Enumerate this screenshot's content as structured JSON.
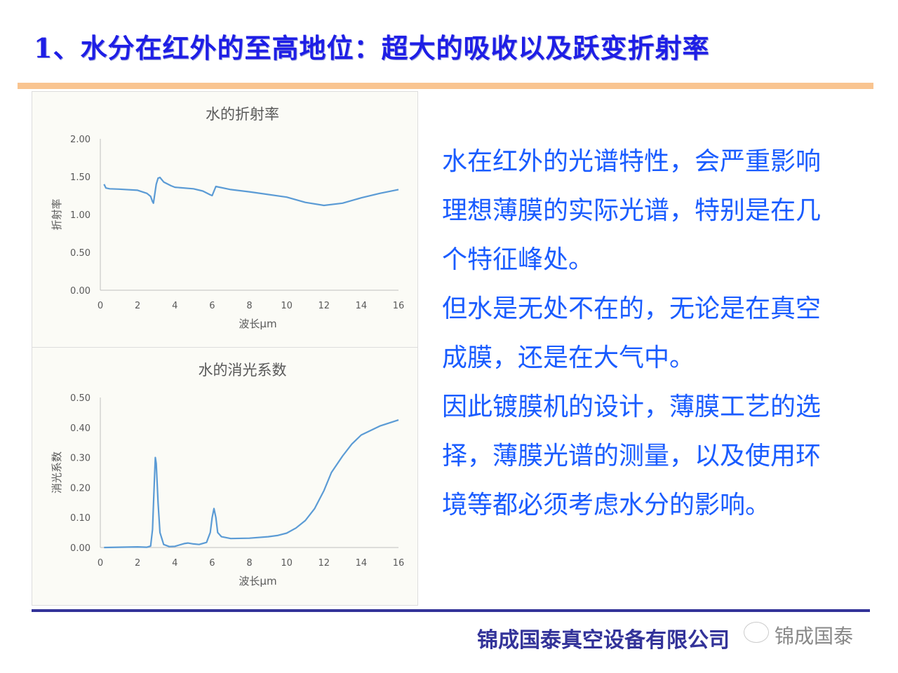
{
  "slide": {
    "title": "1、水分在红外的至高地位：超大的吸收以及跃变折射率",
    "body_lines": [
      "水在红外的光谱特性，会严重影响",
      "理想薄膜的实际光谱，特别是在几",
      "个特征峰处。",
      "但水是无处不在的，无论是在真空",
      "成膜，还是在大气中。",
      "因此镀膜机的设计，薄膜工艺的选",
      "择，薄膜光谱的测量，以及使用环",
      "境等都必须考虑水分的影响。"
    ],
    "footer": "锦成国泰真空设备有限公司",
    "watermark": "锦成国泰",
    "wechat_name": "锦成国泰",
    "colors": {
      "title": "#1e1ee6",
      "body": "#1a5cff",
      "accent_bar": "#f9c490",
      "footer": "#333399",
      "series": "#5b9bd5"
    }
  },
  "chart_data": [
    {
      "type": "line",
      "title": "水的折射率",
      "xlabel": "波长μm",
      "ylabel": "折射率",
      "xlim": [
        0,
        16
      ],
      "ylim": [
        0,
        2
      ],
      "xticks": [
        "0",
        "2",
        "4",
        "6",
        "8",
        "10",
        "12",
        "14",
        "16"
      ],
      "yticks": [
        "0.00",
        "0.50",
        "1.00",
        "1.50",
        "2.00"
      ],
      "grid": false,
      "x": [
        0.2,
        0.3,
        0.5,
        1,
        2,
        2.5,
        2.7,
        2.8,
        2.85,
        3.0,
        3.1,
        3.2,
        3.4,
        3.8,
        4.0,
        5,
        5.5,
        5.9,
        6.0,
        6.2,
        7,
        8,
        10,
        11,
        12,
        13,
        14,
        15,
        16
      ],
      "y": [
        1.4,
        1.35,
        1.34,
        1.335,
        1.32,
        1.28,
        1.24,
        1.17,
        1.15,
        1.4,
        1.48,
        1.49,
        1.43,
        1.38,
        1.36,
        1.34,
        1.31,
        1.26,
        1.25,
        1.37,
        1.33,
        1.3,
        1.23,
        1.16,
        1.12,
        1.15,
        1.22,
        1.28,
        1.33
      ]
    },
    {
      "type": "line",
      "title": "水的消光系数",
      "xlabel": "波长μm",
      "ylabel": "消光系数",
      "xlim": [
        0,
        16
      ],
      "ylim": [
        0,
        0.5
      ],
      "xticks": [
        "0",
        "2",
        "4",
        "6",
        "8",
        "10",
        "12",
        "14",
        "16"
      ],
      "yticks": [
        "0.00",
        "0.10",
        "0.20",
        "0.30",
        "0.40",
        "0.50"
      ],
      "grid": false,
      "x": [
        0.2,
        2,
        2.5,
        2.7,
        2.8,
        2.9,
        2.95,
        3.0,
        3.1,
        3.2,
        3.4,
        3.7,
        4,
        4.5,
        4.7,
        5,
        5.3,
        5.7,
        5.9,
        6.0,
        6.1,
        6.2,
        6.3,
        6.5,
        7,
        8,
        9,
        9.5,
        10,
        10.5,
        11,
        11.5,
        12,
        12.4,
        13,
        13.5,
        14,
        15,
        16
      ],
      "y": [
        0,
        0.002,
        0.001,
        0.005,
        0.06,
        0.22,
        0.3,
        0.28,
        0.15,
        0.05,
        0.01,
        0.003,
        0.004,
        0.013,
        0.015,
        0.012,
        0.01,
        0.017,
        0.05,
        0.1,
        0.13,
        0.1,
        0.05,
        0.036,
        0.03,
        0.031,
        0.036,
        0.04,
        0.048,
        0.065,
        0.09,
        0.13,
        0.19,
        0.25,
        0.305,
        0.345,
        0.375,
        0.405,
        0.425
      ]
    }
  ]
}
